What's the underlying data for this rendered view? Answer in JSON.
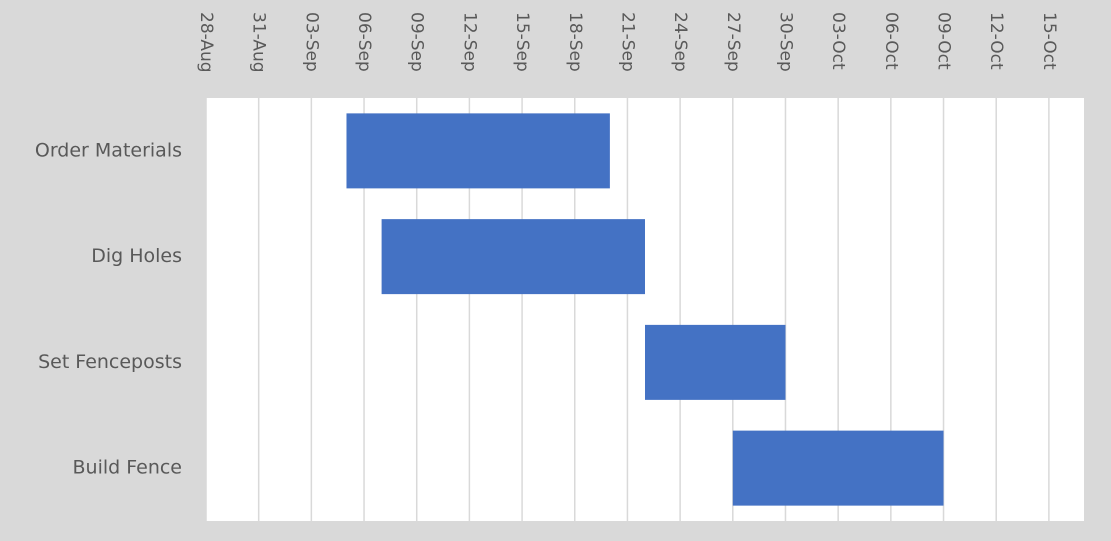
{
  "chart_data": {
    "type": "gantt",
    "categories": [
      "Order Materials",
      "Dig Holes",
      "Set Fenceposts",
      "Build Fence"
    ],
    "start": [
      "05-Sep",
      "07-Sep",
      "22-Sep",
      "27-Sep"
    ],
    "end": [
      "20-Sep",
      "22-Sep",
      "30-Sep",
      "09-Oct"
    ],
    "color": "#4472c4",
    "xlim": [
      "28-Aug",
      "17-Oct"
    ],
    "xticks": [
      "28-Aug",
      "31-Aug",
      "03-Sep",
      "06-Sep",
      "09-Sep",
      "12-Sep",
      "15-Sep",
      "18-Sep",
      "21-Sep",
      "24-Sep",
      "27-Sep",
      "30-Sep",
      "03-Oct",
      "06-Oct",
      "09-Oct",
      "12-Oct",
      "15-Oct"
    ],
    "grid": true
  }
}
